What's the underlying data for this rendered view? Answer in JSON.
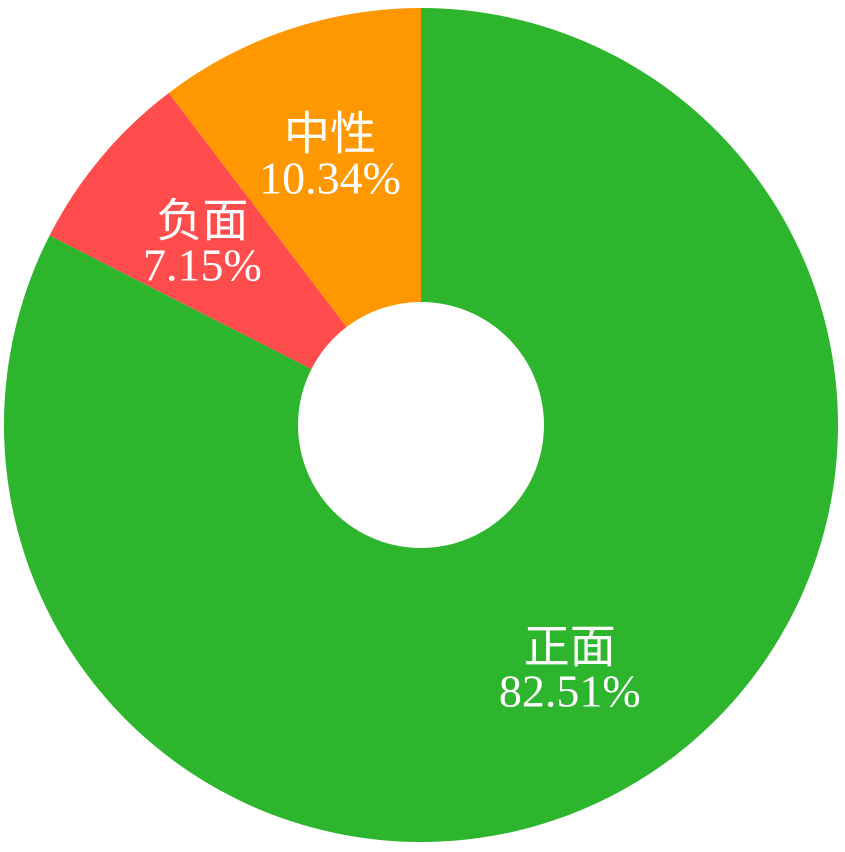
{
  "page": {
    "background_color": "#ffffff"
  },
  "chart_data": {
    "type": "pie",
    "subtype": "donut",
    "title": "",
    "legend": "none",
    "label_position": "inside",
    "label_color": "#ffffff",
    "start_angle_deg": 0,
    "clockwise": true,
    "inner_radius_ratio": 0.295,
    "keys": [
      "positive",
      "negative",
      "neutral"
    ],
    "categories": [
      "正面",
      "负面",
      "中性"
    ],
    "values": [
      82.51,
      7.15,
      10.34
    ],
    "colors": [
      "#2DB52D",
      "#FF4D4D",
      "#FF9800"
    ],
    "labels": [
      {
        "name": "正面",
        "percent_text": "82.51%",
        "value": 82.51,
        "color": "#2DB52D"
      },
      {
        "name": "负面",
        "percent_text": "7.15%",
        "value": 7.15,
        "color": "#FF4D4D"
      },
      {
        "name": "中性",
        "percent_text": "10.34%",
        "value": 10.34,
        "color": "#FF9800"
      }
    ]
  }
}
